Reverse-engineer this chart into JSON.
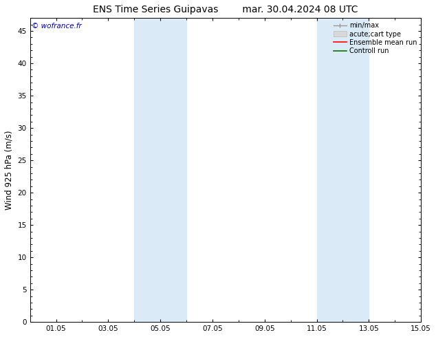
{
  "title_left": "ENS Time Series Guipavas",
  "title_right": "mar. 30.04.2024 08 UTC",
  "ylabel": "Wind 925 hPa (m/s)",
  "watermark": "© wofrance.fr",
  "watermark_color": "#0000cc",
  "ylim": [
    0,
    47
  ],
  "yticks": [
    0,
    5,
    10,
    15,
    20,
    25,
    30,
    35,
    40,
    45
  ],
  "xlim": [
    0,
    15
  ],
  "xtick_positions": [
    1,
    3,
    5,
    7,
    9,
    11,
    13,
    15
  ],
  "xtick_labels": [
    "01.05",
    "03.05",
    "05.05",
    "07.05",
    "09.05",
    "11.05",
    "13.05",
    "15.05"
  ],
  "shaded_bands": [
    {
      "x_start": 4.0,
      "x_end": 6.0,
      "color": "#daeaf7"
    },
    {
      "x_start": 11.0,
      "x_end": 13.0,
      "color": "#daeaf7"
    }
  ],
  "bg_color": "#ffffff",
  "plot_bg_color": "#ffffff",
  "title_fontsize": 10,
  "tick_fontsize": 7.5,
  "ylabel_fontsize": 8.5,
  "legend_fontsize": 7
}
